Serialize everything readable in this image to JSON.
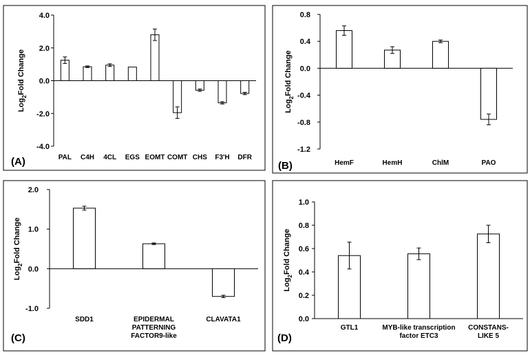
{
  "chart_data": [
    {
      "panel_label": "(A)",
      "type": "bar",
      "ylabel": "Log2Fold Change",
      "ylim": [
        -4.0,
        4.0
      ],
      "yticks": [
        "4.0",
        "2.0",
        "0.0",
        "-2.0",
        "-4.0"
      ],
      "categories": [
        "PAL",
        "C4H",
        "4CL",
        "EGS",
        "EOMT",
        "COMT",
        "CHS",
        "F3'H",
        "DFR"
      ],
      "values": [
        1.25,
        0.85,
        0.95,
        0.83,
        2.8,
        -1.95,
        -0.58,
        -1.35,
        -0.78
      ],
      "errors": [
        0.2,
        0.05,
        0.08,
        0.0,
        0.35,
        0.35,
        0.07,
        0.07,
        0.07
      ]
    },
    {
      "panel_label": "(B)",
      "type": "bar",
      "ylabel": "Log2Fold Change",
      "ylim": [
        -1.2,
        0.8
      ],
      "yticks": [
        "0.8",
        "0.4",
        "0.0",
        "-0.4",
        "-0.8",
        "-1.2"
      ],
      "categories": [
        "HemF",
        "HemH",
        "ChlM",
        "PAO"
      ],
      "values": [
        0.56,
        0.27,
        0.4,
        -0.76
      ],
      "errors": [
        0.07,
        0.05,
        0.02,
        0.08
      ]
    },
    {
      "panel_label": "(C)",
      "type": "bar",
      "ylabel": "Log2Fold Change",
      "ylim": [
        -1.0,
        2.0
      ],
      "yticks": [
        "2.0",
        "1.0",
        "0.0",
        "-1.0"
      ],
      "categories": [
        "SDD1",
        "EPIDERMAL\nPATTERNING\nFACTOR9-like",
        "CLAVATA1"
      ],
      "values": [
        1.53,
        0.63,
        -0.7
      ],
      "errors": [
        0.05,
        0.02,
        0.03
      ]
    },
    {
      "panel_label": "(D)",
      "type": "bar",
      "ylabel": "Log2Fold Change",
      "ylim": [
        0.0,
        1.0
      ],
      "yticks": [
        "1.0",
        "0.8",
        "0.6",
        "0.4",
        "0.2",
        "0.0"
      ],
      "categories": [
        "GTL1",
        "MYB-like transcription\nfactor ETC3",
        "CONSTANS-\nLIKE 5"
      ],
      "values": [
        0.54,
        0.555,
        0.725
      ],
      "errors": [
        0.115,
        0.05,
        0.075
      ]
    }
  ]
}
